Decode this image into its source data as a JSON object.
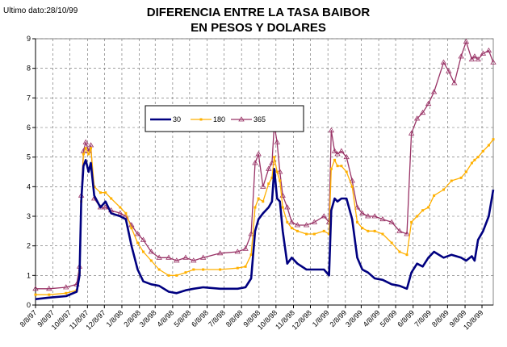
{
  "note": "Ultimo dato:28/10/99",
  "title_line1": "DIFERENCIA ENTRE LA TASA BAIBOR",
  "title_line2": "EN PESOS Y DOLARES",
  "chart_data": {
    "type": "line",
    "title": "DIFERENCIA ENTRE LA TASA BAIBOR EN PESOS Y DOLARES",
    "ylim": [
      0,
      9
    ],
    "yticks": [
      "0",
      "1",
      "2",
      "3",
      "4",
      "5",
      "6",
      "7",
      "8",
      "9"
    ],
    "grid": true,
    "legend_position": "upper-left",
    "x_tick_labels": [
      "8/8/97",
      "9/8/97",
      "10/8/97",
      "11/8/97",
      "12/8/97",
      "1/8/98",
      "2/8/98",
      "3/8/98",
      "4/8/98",
      "5/8/98",
      "6/8/98",
      "7/8/98",
      "8/8/98",
      "9/8/98",
      "10/8/98",
      "11/8/98",
      "12/8/98",
      "1/8/99",
      "2/8/99",
      "3/8/99",
      "4/8/99",
      "5/8/99",
      "6/8/99",
      "7/8/99",
      "8/8/99",
      "9/8/99",
      "10/8/99"
    ],
    "x_range": [
      "1997-08-08",
      "1999-10-28"
    ],
    "series": [
      {
        "name": "30",
        "color": "#000080",
        "points": [
          [
            "1997-08-08",
            0.2
          ],
          [
            "1997-09-01",
            0.25
          ],
          [
            "1997-10-01",
            0.3
          ],
          [
            "1997-10-20",
            0.45
          ],
          [
            "1997-10-25",
            1.0
          ],
          [
            "1997-10-28",
            3.5
          ],
          [
            "1997-11-01",
            4.7
          ],
          [
            "1997-11-05",
            4.9
          ],
          [
            "1997-11-10",
            4.5
          ],
          [
            "1997-11-14",
            4.8
          ],
          [
            "1997-11-20",
            3.7
          ],
          [
            "1997-12-01",
            3.3
          ],
          [
            "1997-12-10",
            3.5
          ],
          [
            "1997-12-20",
            3.1
          ],
          [
            "1998-01-05",
            3.0
          ],
          [
            "1998-01-15",
            2.9
          ],
          [
            "1998-01-25",
            2.0
          ],
          [
            "1998-02-05",
            1.2
          ],
          [
            "1998-02-15",
            0.8
          ],
          [
            "1998-03-01",
            0.7
          ],
          [
            "1998-03-15",
            0.65
          ],
          [
            "1998-04-01",
            0.45
          ],
          [
            "1998-04-15",
            0.4
          ],
          [
            "1998-05-01",
            0.5
          ],
          [
            "1998-05-15",
            0.55
          ],
          [
            "1998-06-01",
            0.6
          ],
          [
            "1998-07-01",
            0.55
          ],
          [
            "1998-08-01",
            0.55
          ],
          [
            "1998-08-15",
            0.6
          ],
          [
            "1998-08-25",
            0.9
          ],
          [
            "1998-09-01",
            2.5
          ],
          [
            "1998-09-07",
            2.9
          ],
          [
            "1998-09-15",
            3.1
          ],
          [
            "1998-09-25",
            3.3
          ],
          [
            "1998-10-01",
            3.5
          ],
          [
            "1998-10-05",
            4.6
          ],
          [
            "1998-10-10",
            3.6
          ],
          [
            "1998-10-15",
            3.5
          ],
          [
            "1998-10-20",
            2.5
          ],
          [
            "1998-10-28",
            1.4
          ],
          [
            "1998-11-05",
            1.6
          ],
          [
            "1998-11-15",
            1.4
          ],
          [
            "1998-12-01",
            1.2
          ],
          [
            "1998-12-15",
            1.2
          ],
          [
            "1999-01-01",
            1.2
          ],
          [
            "1999-01-10",
            1.0
          ],
          [
            "1999-01-14",
            3.2
          ],
          [
            "1999-01-20",
            3.6
          ],
          [
            "1999-01-25",
            3.5
          ],
          [
            "1999-02-01",
            3.6
          ],
          [
            "1999-02-10",
            3.6
          ],
          [
            "1999-02-20",
            2.9
          ],
          [
            "1999-03-01",
            1.6
          ],
          [
            "1999-03-10",
            1.2
          ],
          [
            "1999-03-20",
            1.1
          ],
          [
            "1999-04-01",
            0.9
          ],
          [
            "1999-04-15",
            0.85
          ],
          [
            "1999-05-01",
            0.7
          ],
          [
            "1999-05-15",
            0.65
          ],
          [
            "1999-05-28",
            0.55
          ],
          [
            "1999-06-05",
            1.1
          ],
          [
            "1999-06-15",
            1.4
          ],
          [
            "1999-06-25",
            1.3
          ],
          [
            "1999-07-05",
            1.6
          ],
          [
            "1999-07-15",
            1.8
          ],
          [
            "1999-08-01",
            1.6
          ],
          [
            "1999-08-15",
            1.7
          ],
          [
            "1999-09-01",
            1.6
          ],
          [
            "1999-09-10",
            1.5
          ],
          [
            "1999-09-20",
            1.65
          ],
          [
            "1999-09-25",
            1.5
          ],
          [
            "1999-10-01",
            2.2
          ],
          [
            "1999-10-10",
            2.5
          ],
          [
            "1999-10-20",
            3.0
          ],
          [
            "1999-10-28",
            3.9
          ]
        ]
      },
      {
        "name": "180",
        "color": "#FFB000",
        "points": [
          [
            "1997-08-08",
            0.35
          ],
          [
            "1997-09-01",
            0.35
          ],
          [
            "1997-10-01",
            0.4
          ],
          [
            "1997-10-20",
            0.5
          ],
          [
            "1997-10-25",
            1.1
          ],
          [
            "1997-10-28",
            3.5
          ],
          [
            "1997-11-01",
            5.1
          ],
          [
            "1997-11-05",
            5.3
          ],
          [
            "1997-11-10",
            5.1
          ],
          [
            "1997-11-14",
            5.3
          ],
          [
            "1997-11-20",
            4.0
          ],
          [
            "1997-12-01",
            3.8
          ],
          [
            "1997-12-10",
            3.8
          ],
          [
            "1997-12-20",
            3.6
          ],
          [
            "1998-01-05",
            3.3
          ],
          [
            "1998-01-15",
            3.1
          ],
          [
            "1998-01-25",
            2.6
          ],
          [
            "1998-02-05",
            2.1
          ],
          [
            "1998-02-15",
            1.8
          ],
          [
            "1998-03-01",
            1.5
          ],
          [
            "1998-03-15",
            1.2
          ],
          [
            "1998-04-01",
            1.0
          ],
          [
            "1998-04-15",
            1.0
          ],
          [
            "1998-05-01",
            1.1
          ],
          [
            "1998-05-15",
            1.2
          ],
          [
            "1998-06-01",
            1.2
          ],
          [
            "1998-07-01",
            1.2
          ],
          [
            "1998-08-01",
            1.25
          ],
          [
            "1998-08-15",
            1.3
          ],
          [
            "1998-08-25",
            1.7
          ],
          [
            "1998-09-01",
            3.3
          ],
          [
            "1998-09-07",
            3.6
          ],
          [
            "1998-09-15",
            3.5
          ],
          [
            "1998-09-25",
            4.1
          ],
          [
            "1998-10-01",
            4.3
          ],
          [
            "1998-10-05",
            5.0
          ],
          [
            "1998-10-10",
            4.5
          ],
          [
            "1998-10-15",
            4.2
          ],
          [
            "1998-10-20",
            3.3
          ],
          [
            "1998-10-28",
            2.8
          ],
          [
            "1998-11-05",
            2.6
          ],
          [
            "1998-11-15",
            2.5
          ],
          [
            "1998-12-01",
            2.4
          ],
          [
            "1998-12-15",
            2.4
          ],
          [
            "1999-01-01",
            2.5
          ],
          [
            "1999-01-10",
            2.4
          ],
          [
            "1999-01-14",
            4.6
          ],
          [
            "1999-01-20",
            4.9
          ],
          [
            "1999-01-25",
            4.7
          ],
          [
            "1999-02-01",
            4.7
          ],
          [
            "1999-02-10",
            4.5
          ],
          [
            "1999-02-20",
            4.0
          ],
          [
            "1999-03-01",
            2.8
          ],
          [
            "1999-03-10",
            2.6
          ],
          [
            "1999-03-20",
            2.5
          ],
          [
            "1999-04-01",
            2.5
          ],
          [
            "1999-04-15",
            2.4
          ],
          [
            "1999-05-01",
            2.1
          ],
          [
            "1999-05-15",
            1.8
          ],
          [
            "1999-05-28",
            1.7
          ],
          [
            "1999-06-05",
            2.8
          ],
          [
            "1999-06-15",
            3.0
          ],
          [
            "1999-06-25",
            3.2
          ],
          [
            "1999-07-05",
            3.3
          ],
          [
            "1999-07-15",
            3.7
          ],
          [
            "1999-08-01",
            3.9
          ],
          [
            "1999-08-15",
            4.2
          ],
          [
            "1999-09-01",
            4.3
          ],
          [
            "1999-09-10",
            4.5
          ],
          [
            "1999-09-20",
            4.8
          ],
          [
            "1999-09-25",
            4.9
          ],
          [
            "1999-10-01",
            5.0
          ],
          [
            "1999-10-10",
            5.2
          ],
          [
            "1999-10-20",
            5.4
          ],
          [
            "1999-10-28",
            5.6
          ]
        ]
      },
      {
        "name": "365",
        "color": "#993366",
        "points": [
          [
            "1997-08-08",
            0.55
          ],
          [
            "1997-09-01",
            0.55
          ],
          [
            "1997-10-01",
            0.6
          ],
          [
            "1997-10-20",
            0.7
          ],
          [
            "1997-10-25",
            1.3
          ],
          [
            "1997-10-28",
            3.7
          ],
          [
            "1997-11-01",
            5.2
          ],
          [
            "1997-11-05",
            5.5
          ],
          [
            "1997-11-10",
            5.2
          ],
          [
            "1997-11-14",
            5.4
          ],
          [
            "1997-11-20",
            3.6
          ],
          [
            "1997-12-01",
            3.3
          ],
          [
            "1997-12-10",
            3.3
          ],
          [
            "1997-12-20",
            3.2
          ],
          [
            "1998-01-05",
            3.1
          ],
          [
            "1998-01-15",
            3.0
          ],
          [
            "1998-01-25",
            2.7
          ],
          [
            "1998-02-05",
            2.4
          ],
          [
            "1998-02-15",
            2.2
          ],
          [
            "1998-03-01",
            1.8
          ],
          [
            "1998-03-15",
            1.6
          ],
          [
            "1998-04-01",
            1.6
          ],
          [
            "1998-04-15",
            1.5
          ],
          [
            "1998-05-01",
            1.6
          ],
          [
            "1998-05-15",
            1.5
          ],
          [
            "1998-06-01",
            1.6
          ],
          [
            "1998-07-01",
            1.75
          ],
          [
            "1998-08-01",
            1.8
          ],
          [
            "1998-08-15",
            1.9
          ],
          [
            "1998-08-25",
            2.4
          ],
          [
            "1998-09-01",
            4.8
          ],
          [
            "1998-09-07",
            5.1
          ],
          [
            "1998-09-15",
            4.0
          ],
          [
            "1998-09-25",
            4.6
          ],
          [
            "1998-10-01",
            4.8
          ],
          [
            "1998-10-05",
            6.1
          ],
          [
            "1998-10-10",
            5.5
          ],
          [
            "1998-10-15",
            4.5
          ],
          [
            "1998-10-20",
            3.7
          ],
          [
            "1998-10-28",
            3.3
          ],
          [
            "1998-11-05",
            2.8
          ],
          [
            "1998-11-15",
            2.7
          ],
          [
            "1998-12-01",
            2.7
          ],
          [
            "1998-12-15",
            2.8
          ],
          [
            "1999-01-01",
            3.0
          ],
          [
            "1999-01-10",
            2.8
          ],
          [
            "1999-01-14",
            5.9
          ],
          [
            "1999-01-20",
            5.2
          ],
          [
            "1999-01-25",
            5.1
          ],
          [
            "1999-02-01",
            5.2
          ],
          [
            "1999-02-10",
            5.0
          ],
          [
            "1999-02-20",
            4.2
          ],
          [
            "1999-03-01",
            3.3
          ],
          [
            "1999-03-10",
            3.1
          ],
          [
            "1999-03-20",
            3.0
          ],
          [
            "1999-04-01",
            3.0
          ],
          [
            "1999-04-15",
            2.9
          ],
          [
            "1999-05-01",
            2.8
          ],
          [
            "1999-05-15",
            2.5
          ],
          [
            "1999-05-28",
            2.4
          ],
          [
            "1999-06-05",
            5.8
          ],
          [
            "1999-06-15",
            6.3
          ],
          [
            "1999-06-25",
            6.5
          ],
          [
            "1999-07-05",
            6.8
          ],
          [
            "1999-07-15",
            7.2
          ],
          [
            "1999-08-01",
            8.2
          ],
          [
            "1999-08-10",
            7.9
          ],
          [
            "1999-08-20",
            7.5
          ],
          [
            "1999-09-01",
            8.4
          ],
          [
            "1999-09-10",
            8.9
          ],
          [
            "1999-09-20",
            8.3
          ],
          [
            "1999-09-25",
            8.4
          ],
          [
            "1999-10-01",
            8.3
          ],
          [
            "1999-10-10",
            8.5
          ],
          [
            "1999-10-20",
            8.6
          ],
          [
            "1999-10-28",
            8.2
          ]
        ]
      }
    ]
  }
}
